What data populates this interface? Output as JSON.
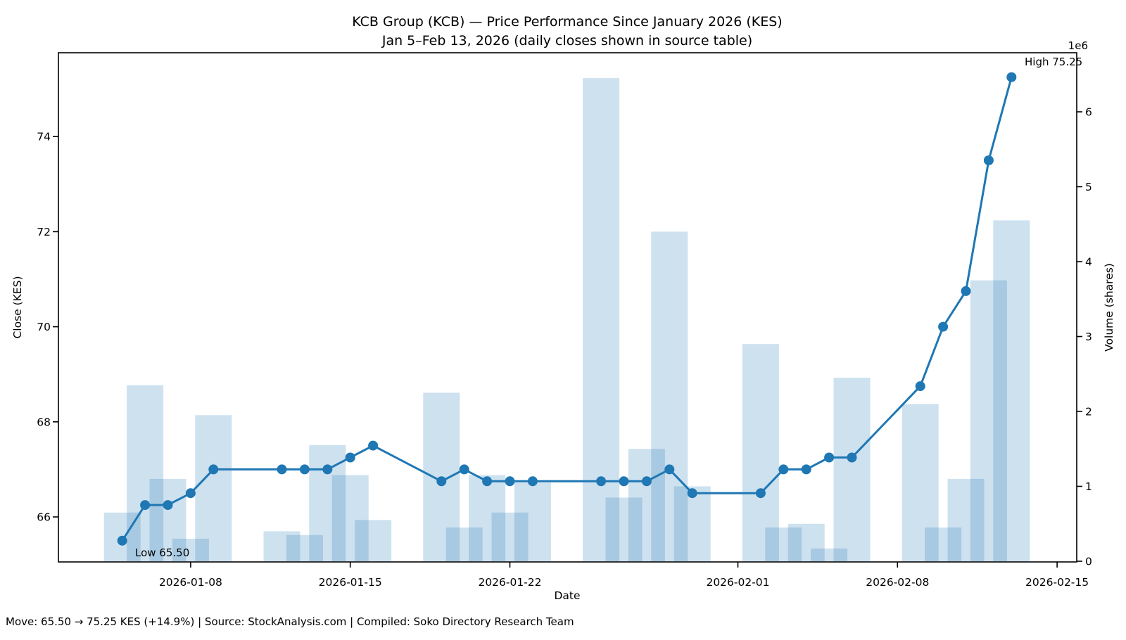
{
  "page": {
    "background": "#ffffff"
  },
  "chart_data": {
    "type": "line+bar",
    "title": "KCB Group (KCB) — Price Performance Since January 2026 (KES)",
    "subtitle": "Jan 5–Feb 13, 2026 (daily closes shown in source table)",
    "xlabel": "Date",
    "ylabel_left": "Close (KES)",
    "ylabel_right": "Volume (shares)",
    "right_axis_multiplier": "1e6",
    "annotation_low": "Low 65.50",
    "annotation_high": "High 75.25",
    "footer": "Move: 65.50 → 75.25 KES (+14.9%) | Source: StockAnalysis.com | Compiled: Soko Directory Research Team",
    "line_color": "#1f77b4",
    "bar_color": "#1f77b4",
    "bar_opacity": 0.22,
    "grid": "off",
    "x_tick_labels": [
      "2026-01-08",
      "2026-01-15",
      "2026-01-22",
      "2026-02-01",
      "2026-02-08",
      "2026-02-15"
    ],
    "y_ticks_left": [
      66,
      68,
      70,
      72,
      74
    ],
    "y_ticks_right": [
      0,
      1,
      2,
      3,
      4,
      5,
      6
    ],
    "ylim_left": [
      65.05,
      75.76
    ],
    "ylim_right_millions": [
      0,
      6.8
    ],
    "dates": [
      "2026-01-05",
      "2026-01-06",
      "2026-01-07",
      "2026-01-08",
      "2026-01-09",
      "2026-01-12",
      "2026-01-13",
      "2026-01-14",
      "2026-01-15",
      "2026-01-16",
      "2026-01-19",
      "2026-01-20",
      "2026-01-21",
      "2026-01-22",
      "2026-01-23",
      "2026-01-26",
      "2026-01-27",
      "2026-01-28",
      "2026-01-29",
      "2026-01-30",
      "2026-02-02",
      "2026-02-03",
      "2026-02-04",
      "2026-02-05",
      "2026-02-06",
      "2026-02-09",
      "2026-02-10",
      "2026-02-11",
      "2026-02-12",
      "2026-02-13"
    ],
    "series": [
      {
        "name": "Close (KES)",
        "type": "line",
        "values": [
          65.5,
          66.25,
          66.25,
          66.5,
          67.0,
          67.0,
          67.0,
          67.0,
          67.25,
          67.5,
          66.75,
          67.0,
          66.75,
          66.75,
          66.75,
          66.75,
          66.75,
          66.75,
          67.0,
          66.5,
          66.5,
          67.0,
          67.0,
          67.25,
          67.25,
          68.75,
          70.0,
          70.75,
          73.5,
          75.25
        ]
      },
      {
        "name": "Volume (shares)",
        "type": "bar",
        "values_millions": [
          0.65,
          2.35,
          1.1,
          0.3,
          1.95,
          0.4,
          0.35,
          1.55,
          1.15,
          0.55,
          2.25,
          0.45,
          1.15,
          0.65,
          1.05,
          6.45,
          0.85,
          1.5,
          4.4,
          1.0,
          2.9,
          0.45,
          0.5,
          0.17,
          2.45,
          2.1,
          0.45,
          1.1,
          3.75,
          4.55
        ]
      }
    ]
  }
}
